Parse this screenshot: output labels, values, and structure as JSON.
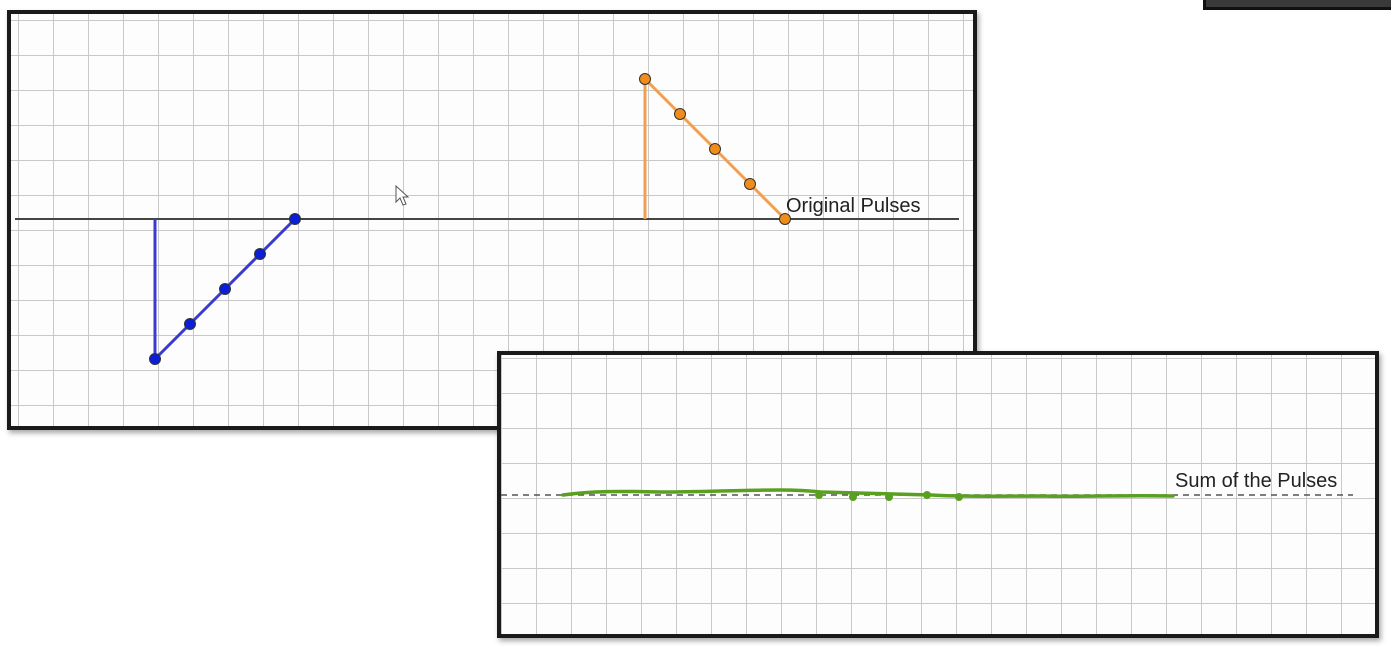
{
  "top_panel": {
    "label": "Original Pulses",
    "pulses": [
      {
        "name": "",
        "color": "#3a3ad0",
        "dot_color": "#0a1fd6",
        "points": [
          [
            4,
            0
          ],
          [
            4,
            -4
          ],
          [
            5,
            -3
          ],
          [
            6,
            -2
          ],
          [
            7,
            -1
          ],
          [
            8,
            0
          ]
        ]
      },
      {
        "name": "",
        "color": "#f0a050",
        "dot_color": "#f08c1a",
        "points": [
          [
            18,
            0
          ],
          [
            18,
            4
          ],
          [
            19,
            3
          ],
          [
            20,
            2
          ],
          [
            21,
            1
          ],
          [
            22,
            0
          ]
        ]
      }
    ],
    "baseline_color": "#444444"
  },
  "bottom_panel": {
    "label": "Sum of the Pulses",
    "sum_color": "#5aa020",
    "baseline": "dashed"
  },
  "icons": {
    "cursor": "mouse-pointer-icon"
  }
}
